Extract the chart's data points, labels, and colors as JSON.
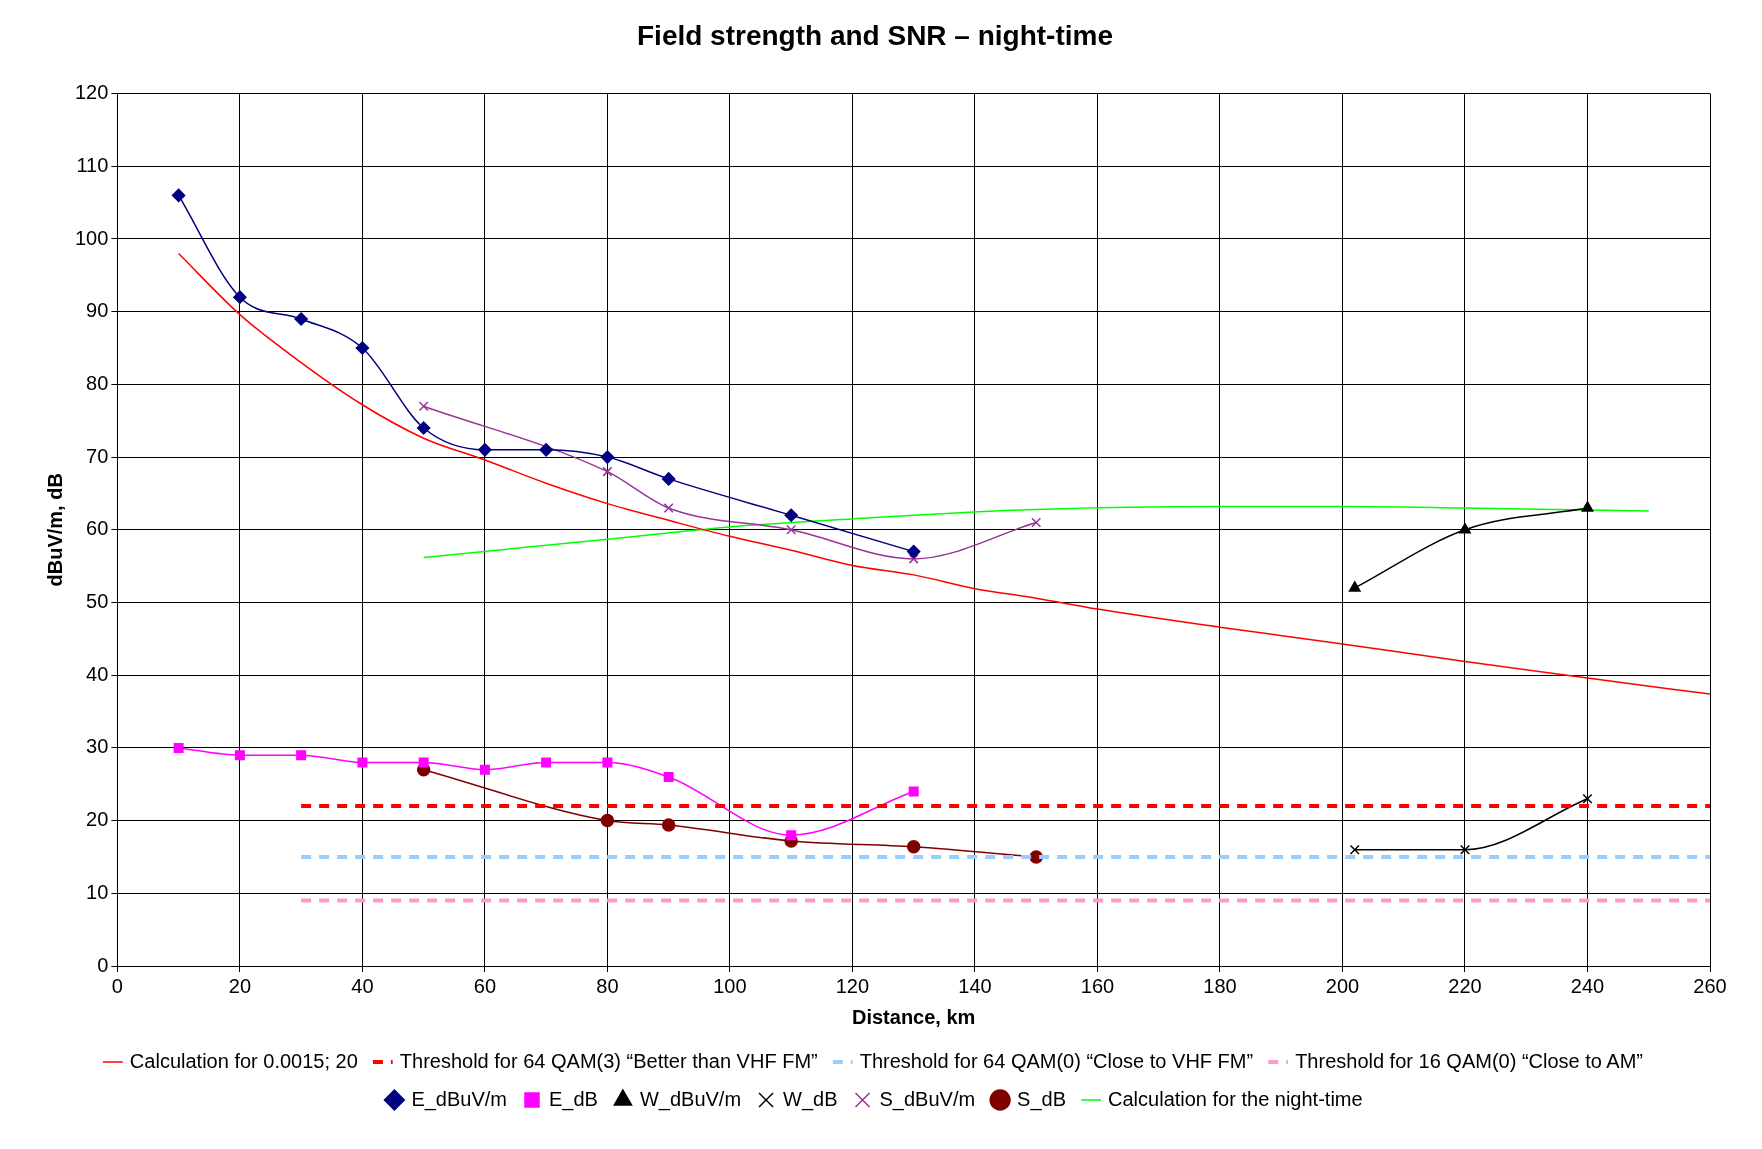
{
  "chart_data": {
    "type": "line",
    "title": "Field strength and SNR – night-time",
    "xlabel": "Distance, km",
    "ylabel": "dBuV/m, dB",
    "xlim": [
      0,
      260
    ],
    "xticks": [
      0,
      20,
      40,
      60,
      80,
      100,
      120,
      140,
      160,
      180,
      200,
      220,
      240,
      260
    ],
    "ylim": [
      0,
      120
    ],
    "yticks": [
      0,
      10,
      20,
      30,
      40,
      50,
      60,
      70,
      80,
      90,
      100,
      110,
      120
    ],
    "grid": true,
    "legend": "bottom",
    "series": [
      {
        "name": "Calculation for 0.0015; 20",
        "color": "#ff0000",
        "marker": "none",
        "line_style": "solid",
        "x": [
          10,
          20,
          30,
          40,
          50,
          60,
          70,
          80,
          90,
          100,
          110,
          120,
          130,
          140,
          150,
          160,
          180,
          200,
          220,
          240,
          260
        ],
        "values": [
          98,
          89.6,
          83,
          77.2,
          72.6,
          69.6,
          66.4,
          63.6,
          61.3,
          59.1,
          57.2,
          55.1,
          53.8,
          51.9,
          50.6,
          49.1,
          46.6,
          44.3,
          41.9,
          39.6,
          37.4
        ]
      },
      {
        "name": "Threshold for 64 QAM(3) “Better than VHF FM”",
        "color": "#ff0000",
        "marker": "none",
        "line_style": "dashed",
        "x": [
          30,
          260
        ],
        "values": [
          22,
          22
        ]
      },
      {
        "name": "Threshold for 64 QAM(0) “Close to VHF FM”",
        "color": "#99ccff",
        "marker": "none",
        "line_style": "dashed",
        "x": [
          30,
          260
        ],
        "values": [
          15,
          15
        ]
      },
      {
        "name": "Threshold for 16 QAM(0) “Close to AM”",
        "color": "#ff99cc",
        "marker": "none",
        "line_style": "dashed",
        "x": [
          30,
          260
        ],
        "values": [
          9,
          9
        ]
      },
      {
        "name": "E_dBuV/m",
        "color": "#000080",
        "marker": "diamond",
        "line_style": "solid",
        "x": [
          10,
          20,
          30,
          40,
          50,
          60,
          70,
          80,
          90,
          110,
          130
        ],
        "values": [
          106,
          92,
          89,
          85,
          74,
          71,
          71,
          70,
          67,
          62,
          57
        ]
      },
      {
        "name": "E_dB",
        "color": "#ff00ff",
        "marker": "square",
        "line_style": "solid",
        "x": [
          10,
          20,
          30,
          40,
          50,
          60,
          70,
          80,
          90,
          110,
          130
        ],
        "values": [
          30,
          29,
          29,
          28,
          28,
          27,
          28,
          28,
          26,
          18,
          24
        ]
      },
      {
        "name": "W_dBuV/m",
        "color": "#000000",
        "marker": "triangle",
        "line_style": "solid",
        "x": [
          202,
          220,
          240
        ],
        "values": [
          52,
          60,
          63
        ]
      },
      {
        "name": "W_dB",
        "color": "#000000",
        "marker": "cross",
        "line_style": "solid",
        "x": [
          202,
          220,
          240
        ],
        "values": [
          16,
          16,
          23
        ]
      },
      {
        "name": "S_dBuV/m",
        "color": "#993399",
        "marker": "cross",
        "line_style": "solid",
        "x": [
          50,
          80,
          90,
          110,
          130,
          150
        ],
        "values": [
          77,
          68,
          63,
          60,
          56,
          61
        ]
      },
      {
        "name": "S_dB",
        "color": "#800000",
        "marker": "circle",
        "line_style": "solid",
        "x": [
          50,
          80,
          90,
          110,
          130,
          150
        ],
        "values": [
          27,
          20,
          19.4,
          17.2,
          16.4,
          15
        ]
      },
      {
        "name": "Calculation for the night-time",
        "color": "#00ff00",
        "marker": "none",
        "line_style": "solid",
        "x": [
          50,
          80,
          100,
          120,
          150,
          180,
          200,
          220,
          250
        ],
        "values": [
          56.2,
          58.7,
          60.4,
          61.5,
          62.8,
          63.2,
          63.2,
          63,
          62.6
        ]
      }
    ]
  }
}
